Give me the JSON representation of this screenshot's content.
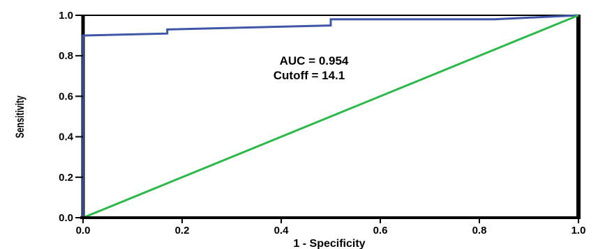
{
  "chart_data": {
    "type": "line",
    "xlabel": "1 - Specificity",
    "ylabel": "Sensitivity",
    "xlim": [
      0,
      1
    ],
    "ylim": [
      0,
      1
    ],
    "xticks": [
      "0.0",
      "0.2",
      "0.4",
      "0.6",
      "0.8",
      "1.0"
    ],
    "yticks": [
      "0.0",
      "0.2",
      "0.4",
      "0.6",
      "0.8",
      "1.0"
    ],
    "annotations": [
      "AUC = 0.954",
      "Cutoff = 14.1"
    ],
    "grid": false,
    "series": [
      {
        "color": "#3f56a6",
        "x": [
          0,
          0,
          0.17,
          0.17,
          0.5,
          0.5,
          0.83,
          1.0
        ],
        "y": [
          0,
          0.9,
          0.91,
          0.93,
          0.95,
          0.98,
          0.98,
          1.0
        ]
      },
      {
        "color": "#2db84a",
        "x": [
          0,
          1
        ],
        "y": [
          0,
          1
        ]
      }
    ]
  }
}
